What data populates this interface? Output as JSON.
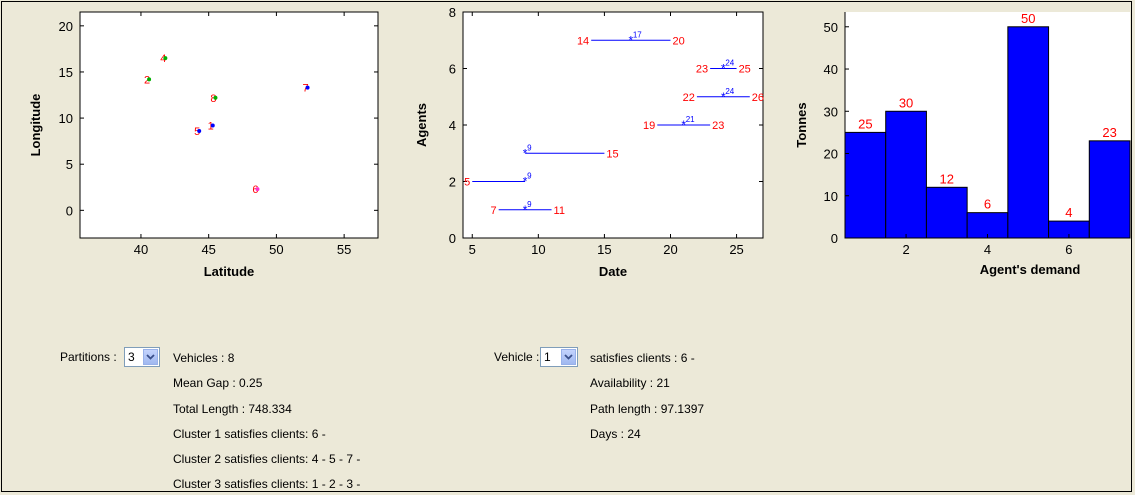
{
  "chart_data": [
    {
      "type": "scatter",
      "xlabel": "Latitude",
      "ylabel": "Longitude",
      "xlim": [
        35.5,
        57.5
      ],
      "ylim": [
        -3,
        21.5
      ],
      "xticks": [
        40,
        45,
        50,
        55
      ],
      "yticks": [
        0,
        5,
        10,
        15,
        20
      ],
      "points": [
        {
          "x": 40.6,
          "y": 14.2,
          "label": "2",
          "marker_color": "#00b000"
        },
        {
          "x": 41.8,
          "y": 16.5,
          "label": "4",
          "marker_color": "#00b000"
        },
        {
          "x": 45.5,
          "y": 12.2,
          "label": "8",
          "marker_color": "#00b000"
        },
        {
          "x": 52.3,
          "y": 13.3,
          "label": "7",
          "marker_color": "#0000ff"
        },
        {
          "x": 44.3,
          "y": 8.6,
          "label": "5",
          "marker_color": "#0000ff"
        },
        {
          "x": 45.3,
          "y": 9.2,
          "label": "1",
          "marker_color": "#0000ff"
        },
        {
          "x": 48.6,
          "y": 2.3,
          "label": "6",
          "marker_color": "#ff33cc"
        }
      ]
    },
    {
      "type": "interval",
      "xlabel": "Date",
      "ylabel": "Agents",
      "xlim": [
        4.3,
        27
      ],
      "ylim": [
        0,
        8
      ],
      "xticks": [
        5,
        10,
        15,
        20,
        25
      ],
      "yticks": [
        0,
        2,
        4,
        6,
        8
      ],
      "intervals": [
        {
          "y": 1,
          "start": 7,
          "end": 11,
          "mid": 9,
          "start_label": "7",
          "end_label": "11",
          "mid_label": "9"
        },
        {
          "y": 2,
          "start": 5,
          "end": 9,
          "mid": 9,
          "start_label": "5",
          "end_label": "",
          "mid_label": "9"
        },
        {
          "y": 3,
          "start": 9,
          "end": 15,
          "mid": 9,
          "start_label": "",
          "end_label": "15",
          "mid_label": "9"
        },
        {
          "y": 4,
          "start": 19,
          "end": 23,
          "mid": 21,
          "start_label": "19",
          "end_label": "23",
          "mid_label": "21"
        },
        {
          "y": 5,
          "start": 22,
          "end": 26,
          "mid": 24,
          "start_label": "22",
          "end_label": "26",
          "mid_label": "24"
        },
        {
          "y": 6,
          "start": 23,
          "end": 25,
          "mid": 24,
          "start_label": "23",
          "end_label": "25",
          "mid_label": "24"
        },
        {
          "y": 7,
          "start": 14,
          "end": 20,
          "mid": 17,
          "start_label": "14",
          "end_label": "20",
          "mid_label": "17"
        }
      ]
    },
    {
      "type": "bar",
      "xlabel": "Agent's demand",
      "ylabel": "Tonnes",
      "xlim": [
        0.5,
        7.5
      ],
      "ylim": [
        0,
        53.5
      ],
      "xticks": [
        2,
        4,
        6
      ],
      "yticks": [
        0,
        10,
        20,
        30,
        40,
        50
      ],
      "categories": [
        1,
        2,
        3,
        4,
        5,
        6,
        7
      ],
      "values": [
        25,
        30,
        12,
        6,
        50,
        4,
        23
      ],
      "data_labels": [
        "25",
        "30",
        "12",
        "6",
        "50",
        "4",
        "23"
      ],
      "bar_color": "#0000ff"
    }
  ],
  "partitions": {
    "label": "Partitions :",
    "value": "3",
    "vehicles": "Vehicles : 8",
    "mean_gap": "Mean Gap : 0.25",
    "total_length": "Total Length : 748.334",
    "clusters": [
      "Cluster 1 satisfies clients: 6 -",
      "Cluster 2 satisfies clients: 4 - 5 - 7 -",
      "Cluster 3 satisfies clients: 1 - 2 - 3 -"
    ]
  },
  "vehicle": {
    "label": "Vehicle :",
    "value": "1",
    "satisfies": "satisfies clients : 6 -",
    "availability": "Availability : 21",
    "path_length": "Path length : 97.1397",
    "days": "Days : 24"
  },
  "colors": {
    "background": "#ece9d8",
    "label_red": "#ff0000",
    "line_blue": "#0000ff",
    "dropdown_border": "#7f9db9"
  }
}
